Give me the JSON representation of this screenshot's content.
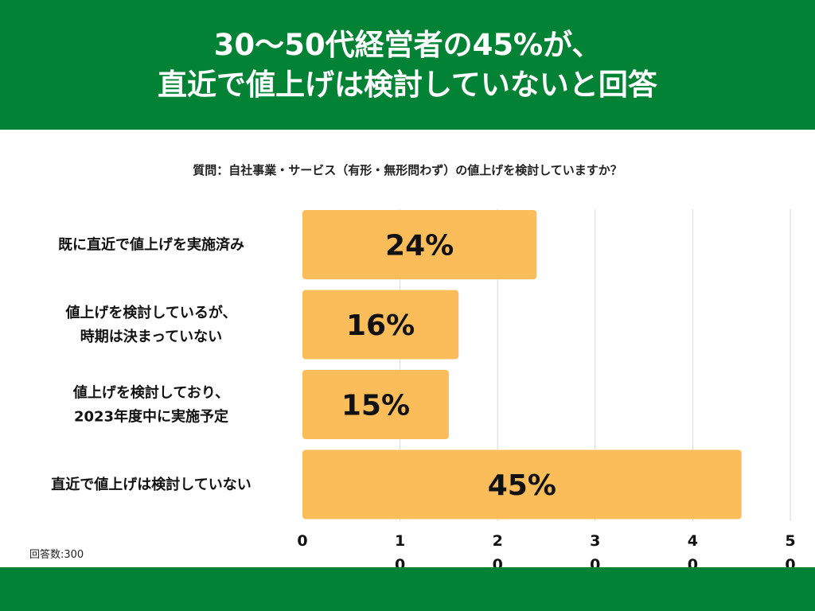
{
  "header": {
    "title_line1": "30〜50代経営者の45%が、",
    "title_line2": "直近で値上げは検討していないと回答"
  },
  "question": "質問：自社事業・サービス（有形・無形問わず）の値上げを検討していますか？",
  "sample_size": "回答数:300",
  "colors": {
    "header_bg": "#018234",
    "bar": "#FBBD5A",
    "grid": "#d9d9d9"
  },
  "chart_data": {
    "type": "bar",
    "orientation": "horizontal",
    "categories": [
      [
        "既に直近で値上げを実施済み"
      ],
      [
        "値上げを検討しているが、",
        "時期は決まっていない"
      ],
      [
        "値上げを検討しており、",
        "2023年度中に実施予定"
      ],
      [
        "直近で値上げは検討していない"
      ]
    ],
    "values": [
      24,
      16,
      15,
      45
    ],
    "value_labels": [
      "24%",
      "16%",
      "15%",
      "45%"
    ],
    "x_ticks": [
      [
        "0"
      ],
      [
        "1",
        "0"
      ],
      [
        "2",
        "0"
      ],
      [
        "3",
        "0"
      ],
      [
        "4",
        "0"
      ],
      [
        "5",
        "0"
      ]
    ],
    "xlim": [
      0,
      50
    ],
    "grid": true
  }
}
